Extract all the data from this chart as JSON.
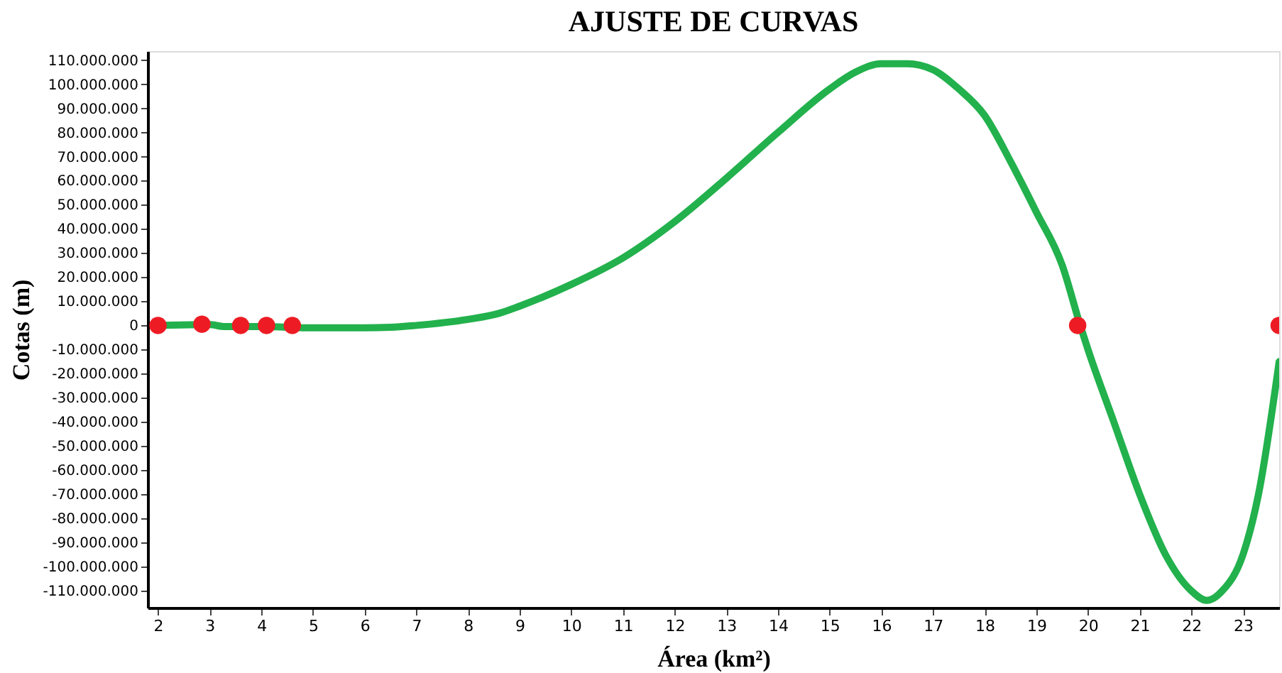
{
  "chart_data": {
    "type": "line",
    "title": "AJUSTE DE CURVAS",
    "xlabel": "Área (km²)",
    "ylabel": "Cotas (m)",
    "series": [
      {
        "color": "#22b14c",
        "x": [
          2,
          3,
          3.3,
          4,
          5,
          6,
          6.5,
          7,
          8,
          8.6,
          9,
          10,
          11,
          12,
          13,
          14,
          15,
          15.5,
          16,
          16.5,
          17,
          17.5,
          18,
          18.5,
          19,
          19.5,
          19.85,
          20,
          20.5,
          21,
          21.5,
          22,
          22.3,
          22.6,
          23,
          23.3,
          23.7
        ],
        "values": [
          0,
          300000,
          -500000,
          -500000,
          -1000000,
          -1000000,
          -800000,
          0,
          2500000,
          5000000,
          8000000,
          17000000,
          28000000,
          43000000,
          61000000,
          80000000,
          98000000,
          105000000,
          108500000,
          108500000,
          106000000,
          98000000,
          87000000,
          68000000,
          47000000,
          25000000,
          0,
          -10000000,
          -40000000,
          -70000000,
          -95000000,
          -110000000,
          -114000000,
          -110000000,
          -95000000,
          -70000000,
          -15000000
        ]
      },
      {
        "type": "scatter",
        "color": "#ed1c24",
        "marker": "circle",
        "x": [
          2,
          2.85,
          3.6,
          4.1,
          4.6,
          19.8,
          23.7
        ],
        "values": [
          0,
          500000,
          0,
          0,
          0,
          0,
          0
        ]
      }
    ],
    "xlim": [
      1.8,
      23.7
    ],
    "ylim": [
      -117000000,
      113700000
    ],
    "xticks": [
      2,
      3,
      4,
      5,
      6,
      7,
      8,
      9,
      10,
      11,
      12,
      13,
      14,
      15,
      16,
      17,
      18,
      19,
      20,
      21,
      22,
      23
    ],
    "yticks": [
      {
        "value": 110000000,
        "label": "110.000.000"
      },
      {
        "value": 100000000,
        "label": "100.000.000"
      },
      {
        "value": 90000000,
        "label": "90.000.000"
      },
      {
        "value": 80000000,
        "label": "80.000.000"
      },
      {
        "value": 70000000,
        "label": "70.000.000"
      },
      {
        "value": 60000000,
        "label": "60.000.000"
      },
      {
        "value": 50000000,
        "label": "50.000.000"
      },
      {
        "value": 40000000,
        "label": "40.000.000"
      },
      {
        "value": 30000000,
        "label": "30.000.000"
      },
      {
        "value": 20000000,
        "label": "20.000.000"
      },
      {
        "value": 10000000,
        "label": "10.000.000"
      },
      {
        "value": 0,
        "label": "0"
      },
      {
        "value": -10000000,
        "label": "-10.000.000"
      },
      {
        "value": -20000000,
        "label": "-20.000.000"
      },
      {
        "value": -30000000,
        "label": "-30.000.000"
      },
      {
        "value": -40000000,
        "label": "-40.000.000"
      },
      {
        "value": -50000000,
        "label": "-50.000.000"
      },
      {
        "value": -60000000,
        "label": "-60.000.000"
      },
      {
        "value": -70000000,
        "label": "-70.000.000"
      },
      {
        "value": -80000000,
        "label": "-80.000.000"
      },
      {
        "value": -90000000,
        "label": "-90.000.000"
      },
      {
        "value": -100000000,
        "label": "-100.000.000"
      },
      {
        "value": -110000000,
        "label": "-110.000.000"
      }
    ],
    "grid": false
  }
}
